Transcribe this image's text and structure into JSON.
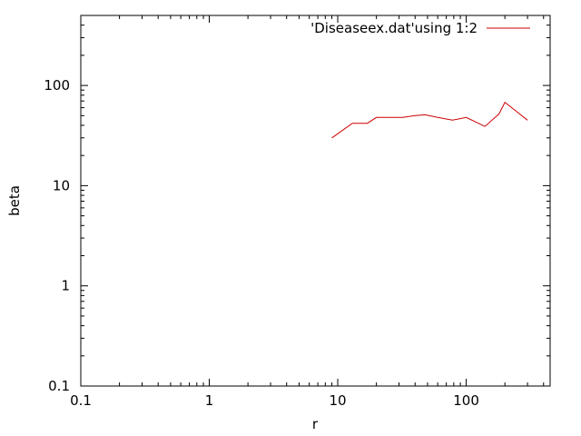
{
  "chart_data": {
    "type": "line",
    "xlabel": "r",
    "ylabel": "beta",
    "xscale": "log",
    "yscale": "log",
    "xlim": [
      0.1,
      450
    ],
    "ylim": [
      0.1,
      500
    ],
    "x_ticks": [
      0.1,
      1,
      10,
      100
    ],
    "x_tick_labels": [
      "0.1",
      "1",
      "10",
      "100"
    ],
    "y_ticks": [
      0.1,
      1,
      10,
      100
    ],
    "y_tick_labels": [
      "0.1",
      "1",
      "10",
      "100"
    ],
    "grid": false,
    "legend_position": "top-right",
    "series": [
      {
        "name": "'Diseaseex.dat'using 1:2",
        "color": "#cc0000",
        "x": [
          9,
          13,
          17,
          20,
          25,
          32,
          40,
          48,
          60,
          78,
          100,
          140,
          180,
          200,
          300
        ],
        "y": [
          30,
          42,
          42,
          48,
          48,
          48,
          50,
          51,
          48,
          45,
          48,
          39,
          52,
          68,
          45
        ]
      }
    ]
  }
}
